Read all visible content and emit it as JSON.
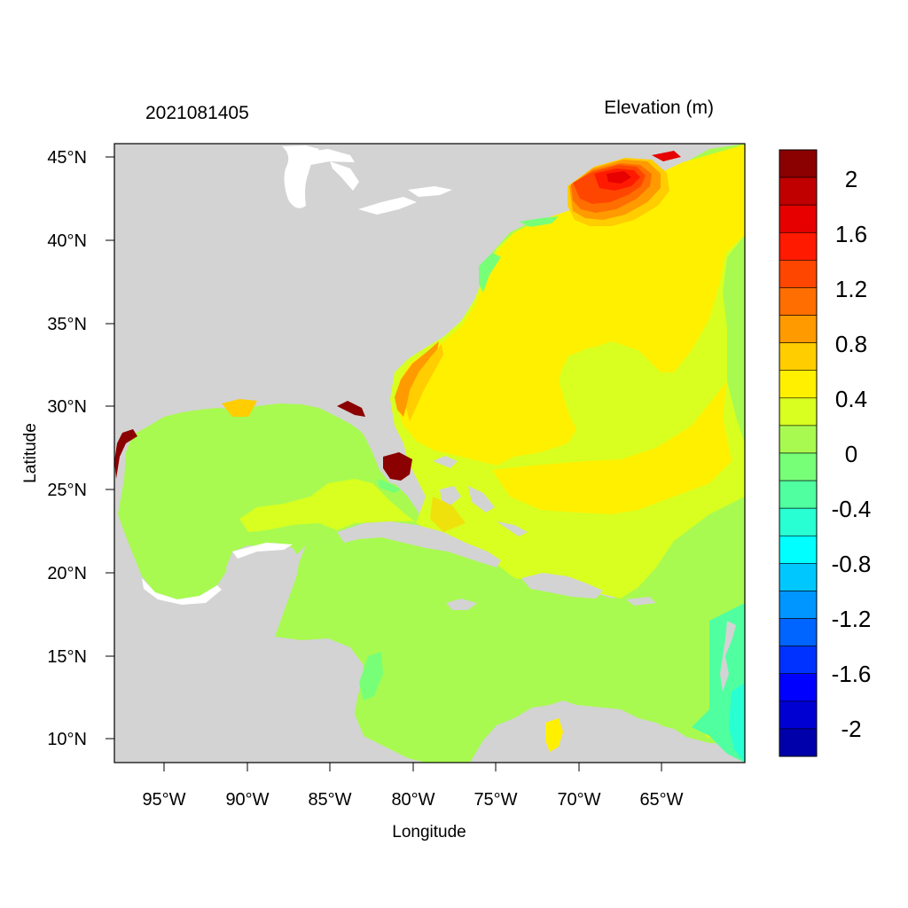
{
  "map": {
    "left_title": "2021081405",
    "right_title": "Elevation (m)",
    "xlabel": "Longitude",
    "ylabel": "Latitude",
    "lon_ticks": [
      "95°W",
      "90°W",
      "85°W",
      "80°W",
      "75°W",
      "70°W",
      "65°W"
    ],
    "lat_ticks": [
      "45°N",
      "40°N",
      "35°N",
      "30°N",
      "25°N",
      "20°N",
      "15°N",
      "10°N"
    ],
    "land_color": "#d3d3d3",
    "ocean_base_color": "#a8fa50"
  },
  "colorbar": {
    "labels": [
      "2",
      "1.6",
      "1.2",
      "0.8",
      "0.4",
      "0",
      "-0.4",
      "-0.8",
      "-1.2",
      "-1.6",
      "-2"
    ],
    "colors": [
      "#8b0000",
      "#c00000",
      "#e60000",
      "#ff1a00",
      "#ff4600",
      "#ff6e00",
      "#ff9a00",
      "#ffcd00",
      "#fff000",
      "#d8ff20",
      "#a8fa50",
      "#78ff78",
      "#50ffa0",
      "#28ffd2",
      "#00ffff",
      "#00c8ff",
      "#0096ff",
      "#0064ff",
      "#0032ff",
      "#0000ff",
      "#0000d2",
      "#0000aa"
    ]
  }
}
